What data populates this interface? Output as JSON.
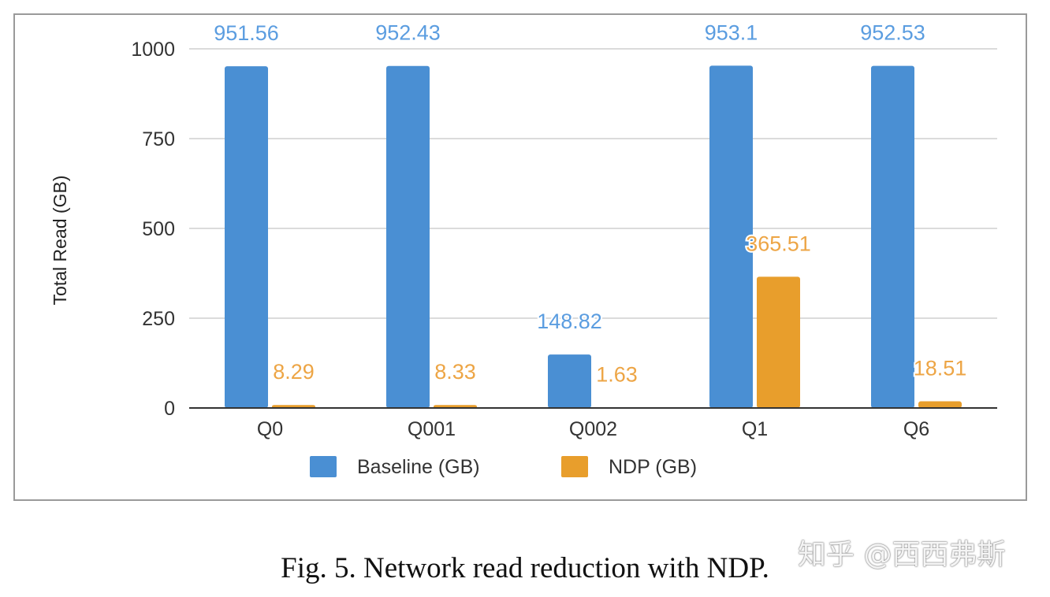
{
  "chart_data": {
    "type": "bar",
    "title": "",
    "xlabel": "",
    "ylabel": "Total Read (GB)",
    "ylim": [
      0,
      1000
    ],
    "yticks": [
      0,
      250,
      500,
      750,
      1000
    ],
    "grid": true,
    "legend_position": "bottom",
    "categories": [
      "Q0",
      "Q001",
      "Q002",
      "Q1",
      "Q6"
    ],
    "series": [
      {
        "name": "Baseline (GB)",
        "color": "#4a8fd3",
        "label_color": "#5b9de0",
        "values": [
          951.56,
          952.43,
          148.82,
          953.1,
          952.53
        ]
      },
      {
        "name": "NDP (GB)",
        "color": "#e89e2c",
        "label_color": "#eda545",
        "values": [
          8.29,
          8.33,
          1.63,
          365.51,
          18.51
        ]
      }
    ]
  },
  "caption": "Fig. 5.  Network read reduction with NDP.",
  "watermark": "知乎 @西西弗斯"
}
